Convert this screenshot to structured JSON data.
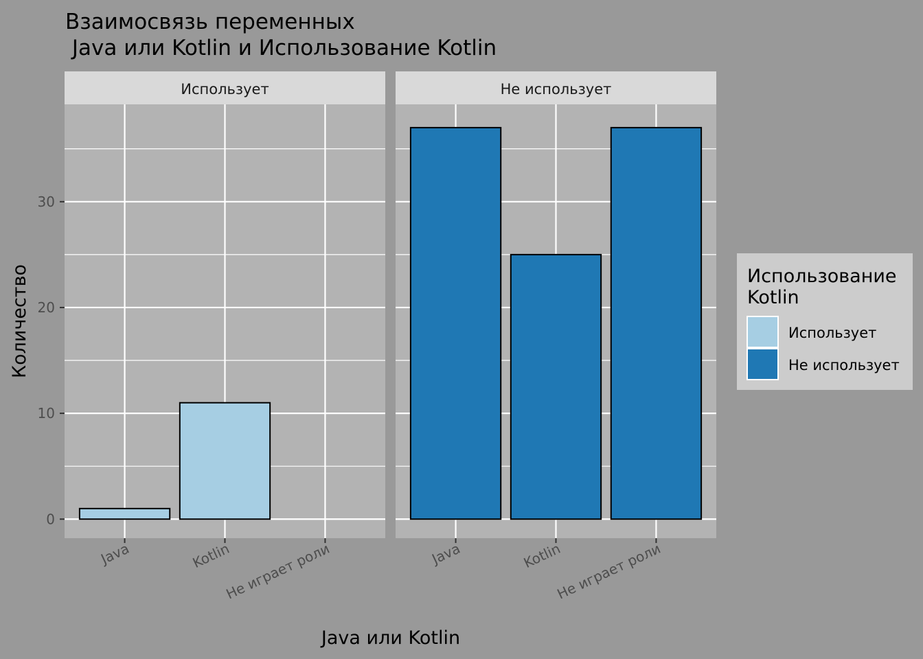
{
  "chart_data": {
    "type": "bar",
    "title_line1": "Взаимосвязь переменных",
    "title_line2": " Java или Kotlin и Использование Kotlin",
    "xlabel": "Java или Kotlin",
    "ylabel": "Количество",
    "categories": [
      "Java",
      "Kotlin",
      "Не играет роли"
    ],
    "ylim": [
      -1.8,
      39.2
    ],
    "yticks": [
      0,
      10,
      20,
      30
    ],
    "facets": [
      {
        "label": "Использует",
        "values": [
          1,
          11,
          0
        ],
        "color": "#a6cee3"
      },
      {
        "label": "Не использует",
        "values": [
          37,
          25,
          37
        ],
        "color": "#1f78b4"
      }
    ],
    "legend": {
      "title_line1": "Использование",
      "title_line2": "Kotlin",
      "placement": "right",
      "entries": [
        {
          "label": "Использует",
          "color": "#a6cee3"
        },
        {
          "label": "Не использует",
          "color": "#1f78b4"
        }
      ]
    },
    "grid": true
  }
}
